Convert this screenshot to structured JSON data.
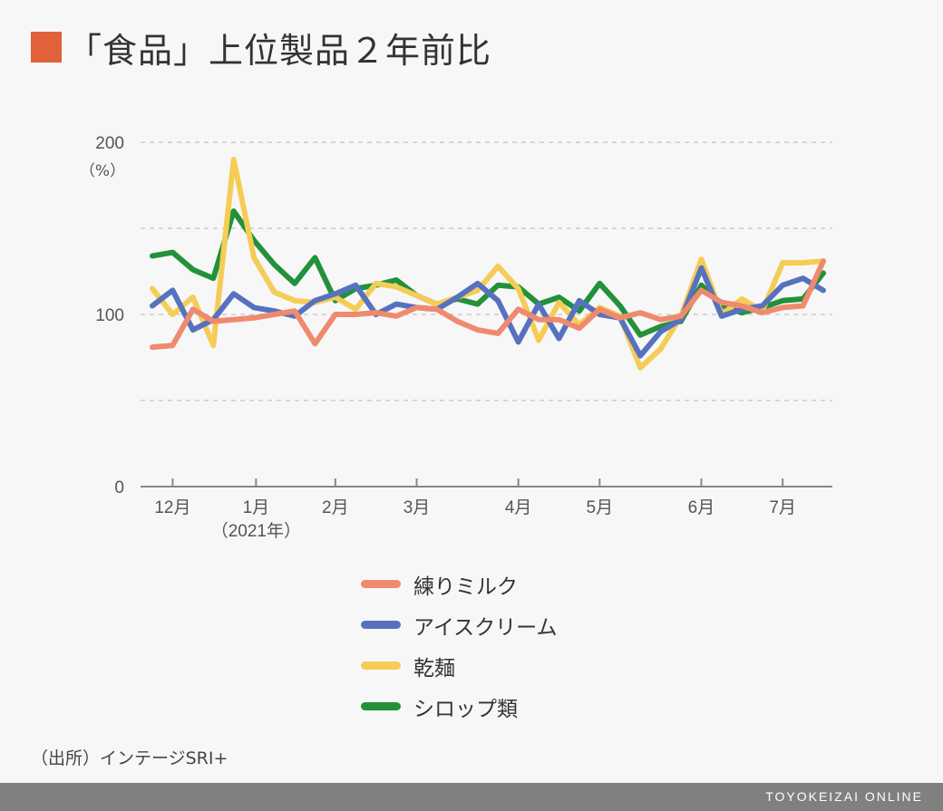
{
  "title": "「食品」上位製品２年前比",
  "source": "（出所）インテージSRI+",
  "footer_brand": "TOYOKEIZAI ONLINE",
  "colors": {
    "title_square": "#e0613a",
    "footer": "#808080",
    "grid": "#cccccc",
    "axis": "#888888"
  },
  "chart_data": {
    "type": "line",
    "title": "「食品」上位製品２年前比",
    "y_unit_label": "（%）",
    "ylim": [
      0,
      200
    ],
    "y_ticks": [
      0,
      100,
      200
    ],
    "y_gridlines": [
      50,
      100,
      150,
      200
    ],
    "x_ticks": [
      {
        "label": "12月",
        "x": 1,
        "sub": ""
      },
      {
        "label": "1月",
        "x": 5.1,
        "sub": "（2021年）"
      },
      {
        "label": "2月",
        "x": 9,
        "sub": ""
      },
      {
        "label": "3月",
        "x": 13,
        "sub": ""
      },
      {
        "label": "4月",
        "x": 18,
        "sub": ""
      },
      {
        "label": "5月",
        "x": 22,
        "sub": ""
      },
      {
        "label": "6月",
        "x": 27,
        "sub": ""
      },
      {
        "label": "7月",
        "x": 31,
        "sub": ""
      }
    ],
    "x_range": [
      0,
      33
    ],
    "series": [
      {
        "name": "シロップ類",
        "color": "#22913a",
        "values": [
          134,
          136,
          126,
          121,
          160,
          143,
          129,
          118,
          133,
          108,
          115,
          117,
          120,
          111,
          106,
          109,
          106,
          117,
          116,
          106,
          110,
          102,
          118,
          105,
          88,
          93,
          96,
          117,
          105,
          101,
          104,
          108,
          109,
          124
        ]
      },
      {
        "name": "乾麺",
        "color": "#f5cc55",
        "values": [
          115,
          100,
          110,
          82,
          190,
          133,
          113,
          108,
          107,
          110,
          103,
          118,
          116,
          111,
          106,
          110,
          114,
          128,
          115,
          85,
          107,
          94,
          104,
          99,
          69,
          80,
          99,
          132,
          100,
          109,
          102,
          130,
          130,
          131
        ]
      },
      {
        "name": "アイスクリーム",
        "color": "#5672bf",
        "values": [
          105,
          114,
          91,
          97,
          112,
          104,
          102,
          99,
          108,
          112,
          117,
          100,
          106,
          104,
          103,
          110,
          118,
          108,
          84,
          106,
          86,
          108,
          100,
          98,
          76,
          90,
          97,
          127,
          99,
          103,
          105,
          117,
          121,
          114
        ]
      },
      {
        "name": "練りミルク",
        "color": "#ef8a6e",
        "values": [
          81,
          82,
          103,
          96,
          97,
          98,
          100,
          102,
          83,
          100,
          100,
          101,
          99,
          104,
          103,
          96,
          91,
          89,
          103,
          97,
          97,
          92,
          103,
          98,
          101,
          97,
          99,
          114,
          107,
          105,
          101,
          104,
          105,
          131
        ]
      }
    ],
    "legend": [
      "練りミルク",
      "アイスクリーム",
      "乾麺",
      "シロップ類"
    ],
    "legend_position": "bottom-center"
  }
}
